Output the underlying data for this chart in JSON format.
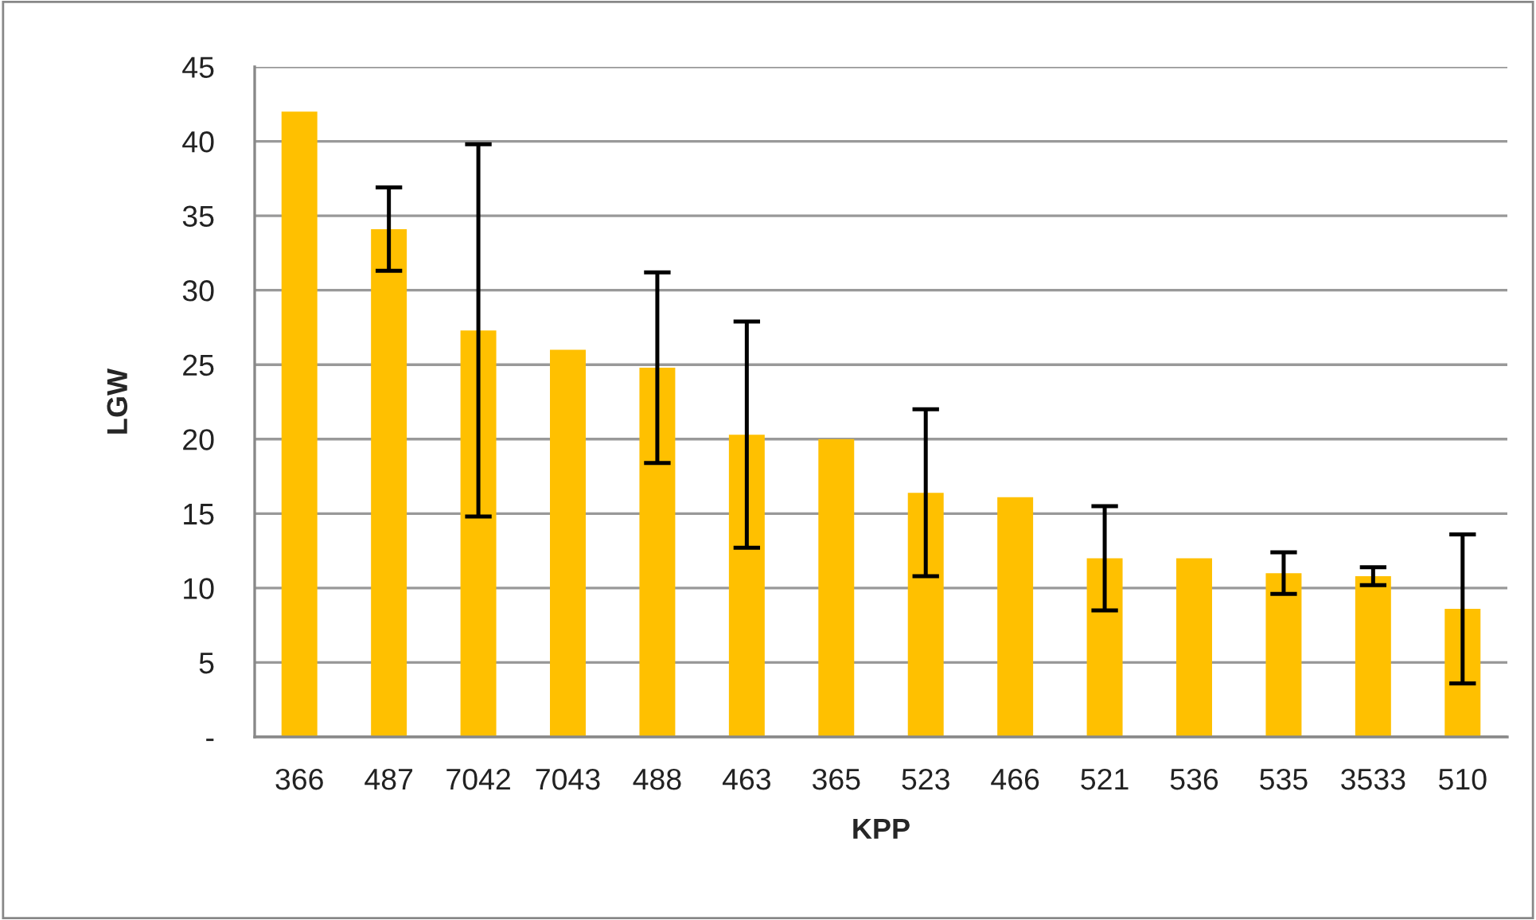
{
  "chart_data": {
    "type": "bar",
    "xlabel": "KPP",
    "ylabel": "LGW",
    "categories": [
      "366",
      "487",
      "7042",
      "7043",
      "488",
      "463",
      "365",
      "523",
      "466",
      "521",
      "536",
      "535",
      "3533",
      "510"
    ],
    "values": [
      42.0,
      34.1,
      27.3,
      26.0,
      24.8,
      20.3,
      20.0,
      16.4,
      16.1,
      12.0,
      12.0,
      11.0,
      10.8,
      8.6
    ],
    "errors": [
      null,
      2.8,
      12.5,
      null,
      6.4,
      7.6,
      null,
      5.6,
      null,
      3.5,
      null,
      1.4,
      0.6,
      5.0
    ],
    "color": "#ffc000",
    "ylim": [
      0,
      45
    ],
    "yticks": [
      {
        "value": 0,
        "label": "-"
      },
      5,
      10,
      15,
      20,
      25,
      30,
      35,
      40,
      45
    ],
    "grid": "y"
  }
}
